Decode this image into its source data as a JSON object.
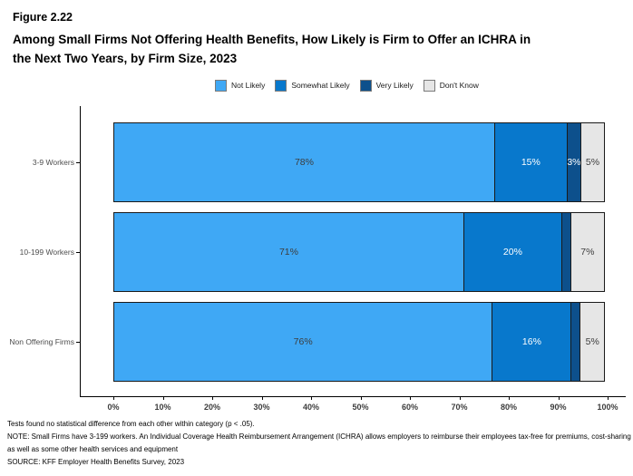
{
  "header": {
    "figure_label": "Figure 2.22",
    "title_line1": "Among Small Firms Not Offering Health Benefits, How Likely is Firm to Offer an ICHRA in",
    "title_line2": "the Next Two Years, by Firm Size, 2023"
  },
  "chart_data": {
    "type": "bar",
    "orientation": "horizontal",
    "stacked": true,
    "title": "Among Small Firms Not Offering Health Benefits, How Likely is Firm to Offer an ICHRA in the Next Two Years, by Firm Size, 2023",
    "categories": [
      "3-9 Workers",
      "10-199 Workers",
      "Non Offering Firms"
    ],
    "series": [
      {
        "name": "Not Likely",
        "color": "#3FA8F5",
        "label_color": "#3d3d3d",
        "values": [
          78,
          71,
          76
        ],
        "labels": [
          "78%",
          "71%",
          "76%"
        ]
      },
      {
        "name": "Somewhat Likely",
        "color": "#0878CC",
        "label_color": "#ffffff",
        "values": [
          15,
          20,
          16
        ],
        "labels": [
          "15%",
          "20%",
          "16%"
        ]
      },
      {
        "name": "Very Likely",
        "color": "#0D508C",
        "label_color": "#ffffff",
        "values": [
          3,
          2,
          2
        ],
        "labels": [
          "3%",
          "",
          ""
        ]
      },
      {
        "name": "Don't Know",
        "color": "#E6E6E6",
        "label_color": "#3d3d3d",
        "values": [
          5,
          7,
          5
        ],
        "labels": [
          "5%",
          "7%",
          "5%"
        ]
      }
    ],
    "xlim": [
      0,
      100
    ],
    "x_ticks": [
      "0%",
      "10%",
      "20%",
      "30%",
      "40%",
      "50%",
      "60%",
      "70%",
      "80%",
      "90%",
      "100%"
    ],
    "legend_position": "top",
    "grid": false
  },
  "footnotes": [
    "Tests found no statistical difference from each other within category (p < .05).",
    "NOTE: Small Firms have 3-199 workers. An Individual Coverage Health Reimbursement Arrangement (ICHRA) allows employers to reimburse their employees tax-free for premiums, cost-sharing as well as some other health services and equipment",
    "SOURCE: KFF Employer Health Benefits Survey, 2023"
  ]
}
